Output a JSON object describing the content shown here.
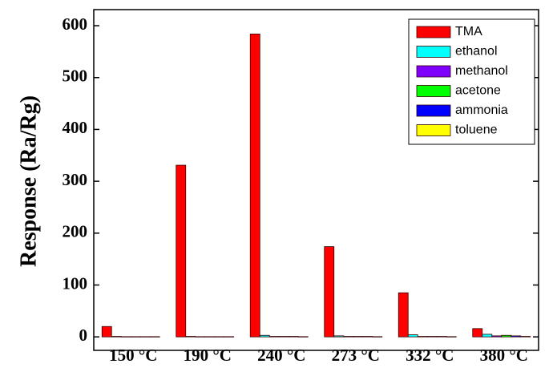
{
  "chart_data": {
    "type": "bar",
    "y_label": "Response (Ra/Rg)",
    "categories": [
      "150 °C",
      "190 °C",
      "240 °C",
      "273 °C",
      "332 °C",
      "380 °C"
    ],
    "series": [
      {
        "name": "TMA",
        "color": "#ff0000",
        "values": [
          20,
          331,
          584,
          174,
          85,
          16
        ]
      },
      {
        "name": "ethanol",
        "color": "#00ffff",
        "values": [
          1,
          1,
          3,
          2,
          4,
          5
        ]
      },
      {
        "name": "methanol",
        "color": "#8000ff",
        "values": [
          0.5,
          0.5,
          1,
          1,
          1,
          2
        ]
      },
      {
        "name": "acetone",
        "color": "#00ff00",
        "values": [
          0.5,
          0.5,
          1,
          1,
          1,
          3
        ]
      },
      {
        "name": "ammonia",
        "color": "#0000ff",
        "values": [
          0.5,
          0.5,
          1,
          1,
          1,
          2
        ]
      },
      {
        "name": "toluene",
        "color": "#ffff00",
        "values": [
          0.5,
          0.5,
          0.5,
          0.5,
          0.5,
          1
        ]
      }
    ],
    "ylim": [
      -26,
      631
    ],
    "yticks": [
      0,
      100,
      200,
      300,
      400,
      500,
      600
    ],
    "legend": "upper-right"
  }
}
